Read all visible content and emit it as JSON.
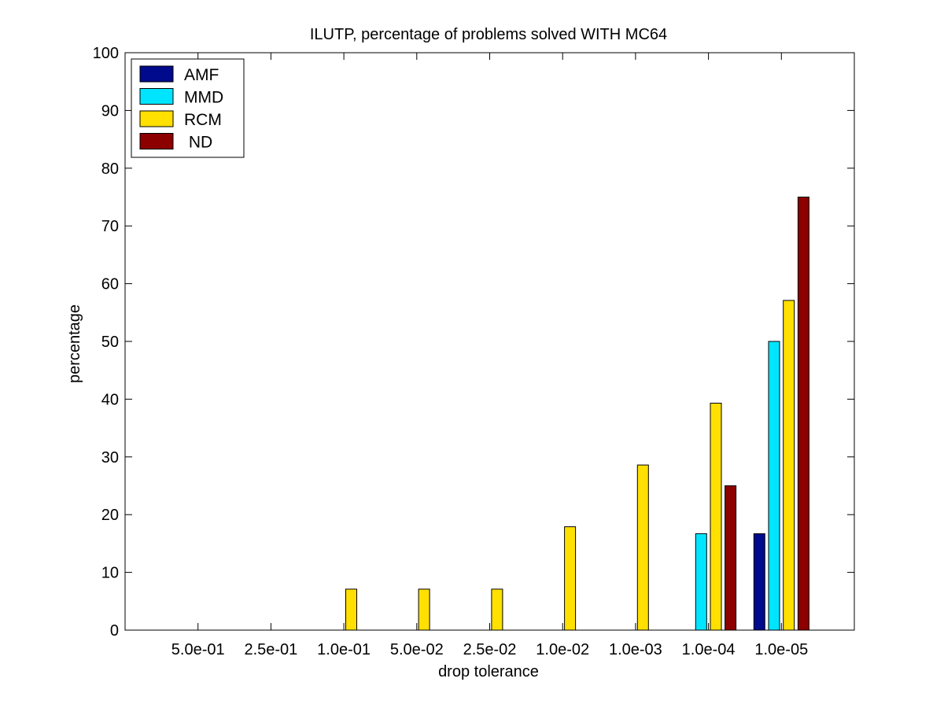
{
  "chart_data": {
    "type": "bar",
    "title": "ILUTP, percentage of problems solved WITH MC64",
    "xlabel": "drop tolerance",
    "ylabel": "percentage",
    "ylim": [
      0,
      100
    ],
    "yticks": [
      0,
      10,
      20,
      30,
      40,
      50,
      60,
      70,
      80,
      90,
      100
    ],
    "categories": [
      "5.0e-01",
      "2.5e-01",
      "1.0e-01",
      "5.0e-02",
      "2.5e-02",
      "1.0e-02",
      "1.0e-03",
      "1.0e-04",
      "1.0e-05"
    ],
    "series": [
      {
        "name": "AMF",
        "color": "#000a8c",
        "values": [
          0,
          0,
          0,
          0,
          0,
          0,
          0,
          0,
          16.7
        ]
      },
      {
        "name": "MMD",
        "color": "#00e5ff",
        "values": [
          0,
          0,
          0,
          0,
          0,
          0,
          0,
          16.7,
          50
        ]
      },
      {
        "name": "RCM",
        "color": "#ffe000",
        "values": [
          0,
          0,
          7.1,
          7.1,
          7.1,
          17.9,
          28.6,
          39.3,
          57.1
        ]
      },
      {
        "name": " ND",
        "color": "#8c0000",
        "values": [
          0,
          0,
          0,
          0,
          0,
          0,
          0,
          25,
          75
        ]
      }
    ],
    "legend_position": "top-left",
    "grid": false
  }
}
